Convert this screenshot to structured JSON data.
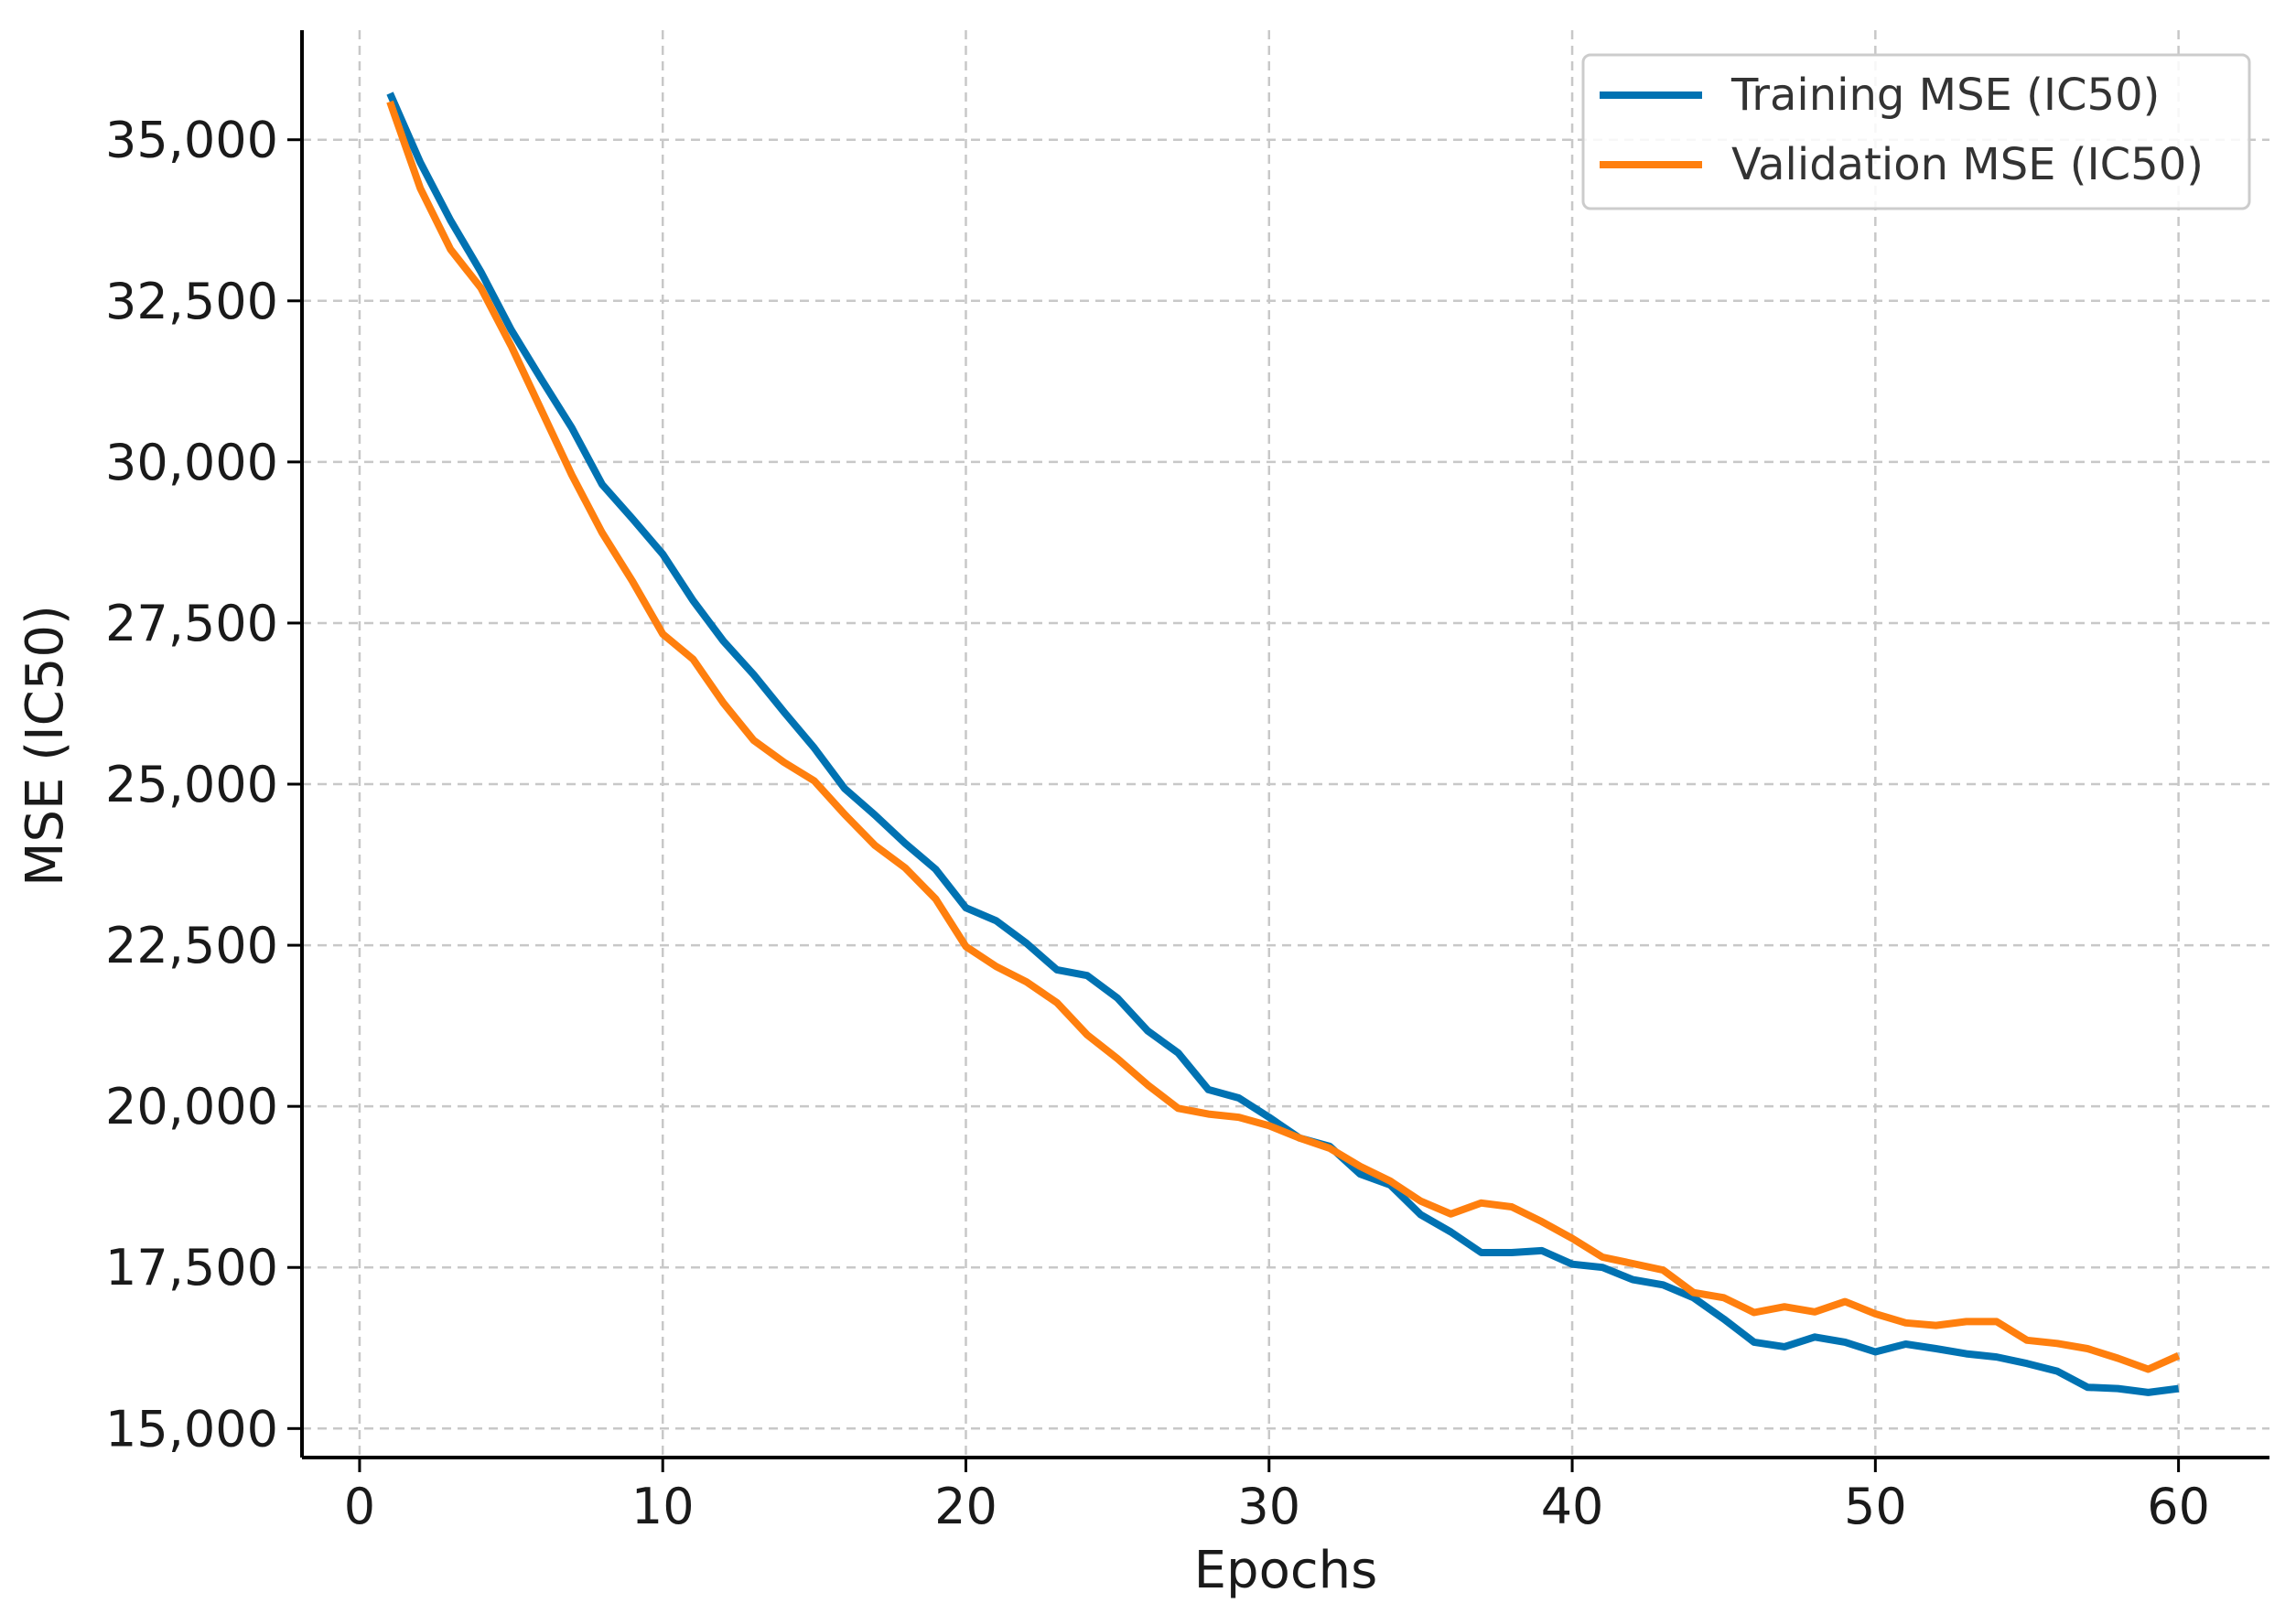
{
  "chart_data": {
    "type": "line",
    "title": "",
    "xlabel": "Epochs",
    "ylabel": "MSE (IC50)",
    "xlim": [
      -1.9,
      63
    ],
    "ylim": [
      14550,
      36700
    ],
    "xticks": [
      0,
      10,
      20,
      30,
      40,
      50,
      60
    ],
    "xtick_labels": [
      "0",
      "10",
      "20",
      "30",
      "40",
      "50",
      "60"
    ],
    "yticks": [
      15000,
      17500,
      20000,
      22500,
      25000,
      27500,
      30000,
      32500,
      35000
    ],
    "ytick_labels": [
      "15,000",
      "17,500",
      "20,000",
      "22,500",
      "25,000",
      "27,500",
      "30,000",
      "32,500",
      "35,000"
    ],
    "grid": true,
    "legend_position": "top-right",
    "x": [
      1,
      2,
      3,
      4,
      5,
      6,
      7,
      8,
      9,
      10,
      11,
      12,
      13,
      14,
      15,
      16,
      17,
      18,
      19,
      20,
      21,
      22,
      23,
      24,
      25,
      26,
      27,
      28,
      29,
      30,
      31,
      32,
      33,
      34,
      35,
      36,
      37,
      38,
      39,
      40,
      41,
      42,
      43,
      44,
      45,
      46,
      47,
      48,
      49,
      50,
      51,
      52,
      53,
      54,
      55,
      56,
      57,
      58,
      59,
      60
    ],
    "series": [
      {
        "name": "Training MSE (IC50)",
        "color": "#0072B2",
        "values": [
          35720,
          34650,
          33750,
          32950,
          32050,
          31280,
          30530,
          29650,
          29120,
          28570,
          27850,
          27220,
          26700,
          26120,
          25560,
          24930,
          24520,
          24080,
          23680,
          23080,
          22880,
          22530,
          22120,
          22030,
          21680,
          21170,
          20830,
          20260,
          20130,
          19830,
          19510,
          19380,
          18950,
          18780,
          18320,
          18050,
          17730,
          17730,
          17760,
          17550,
          17500,
          17310,
          17230,
          17030,
          16700,
          16340,
          16270,
          16420,
          16340,
          16190,
          16310,
          16240,
          16160,
          16110,
          16010,
          15890,
          15640,
          15620,
          15560,
          15620
        ]
      },
      {
        "name": "Validation MSE (IC50)",
        "color": "#FF7F0E",
        "values": [
          35590,
          34250,
          33300,
          32700,
          31800,
          30800,
          29800,
          28900,
          28150,
          27330,
          26940,
          26260,
          25680,
          25340,
          25050,
          24530,
          24050,
          23700,
          23220,
          22480,
          22170,
          21930,
          21610,
          21110,
          20740,
          20330,
          19970,
          19880,
          19830,
          19700,
          19510,
          19350,
          19070,
          18840,
          18530,
          18330,
          18500,
          18440,
          18210,
          17950,
          17660,
          17560,
          17460,
          17110,
          17030,
          16800,
          16890,
          16810,
          16970,
          16780,
          16640,
          16600,
          16660,
          16660,
          16370,
          16320,
          16240,
          16090,
          15920,
          16130
        ]
      }
    ]
  }
}
